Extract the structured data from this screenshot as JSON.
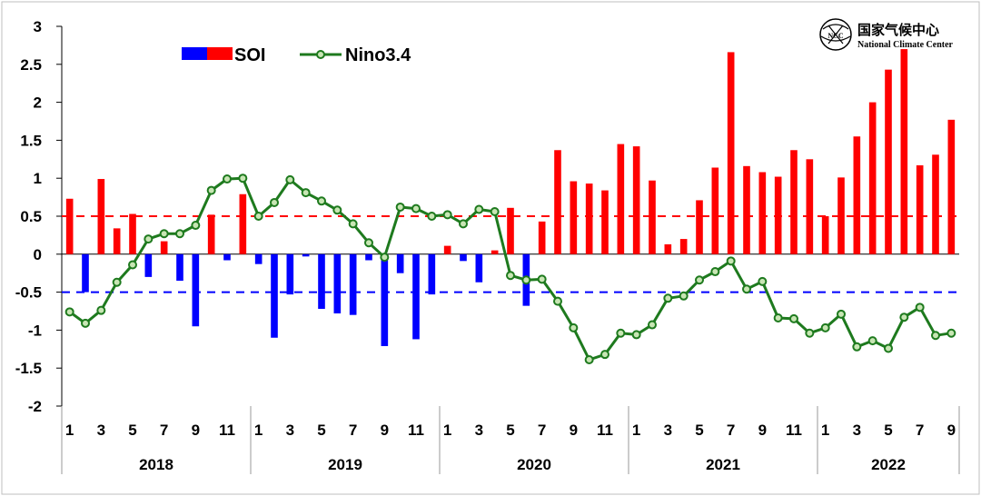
{
  "chart_data": {
    "type": "bar+line",
    "title": "",
    "xlabel": "",
    "ylabel": "",
    "ylim": [
      -2,
      3
    ],
    "yticks": [
      "3",
      "2.5",
      "2",
      "1.5",
      "1",
      "0.5",
      "0",
      "-0.5",
      "-1",
      "-1.5",
      "-2"
    ],
    "ytick_values": [
      3,
      2.5,
      2,
      1.5,
      1,
      0.5,
      0,
      -0.5,
      -1,
      -1.5,
      -2
    ],
    "month_labels": [
      "1",
      "3",
      "5",
      "7",
      "9",
      "11",
      "1",
      "3",
      "5",
      "7",
      "9",
      "11",
      "1",
      "3",
      "5",
      "7",
      "9",
      "11",
      "1",
      "3",
      "5",
      "7",
      "9",
      "11",
      "1",
      "3",
      "5",
      "7",
      "9"
    ],
    "month_label_index": [
      0,
      2,
      4,
      6,
      8,
      10,
      12,
      14,
      16,
      18,
      20,
      22,
      24,
      26,
      28,
      30,
      32,
      34,
      36,
      38,
      40,
      42,
      44,
      46,
      48,
      50,
      52,
      54,
      56
    ],
    "years": [
      {
        "label": "2018",
        "start": 0,
        "end": 12
      },
      {
        "label": "2019",
        "start": 12,
        "end": 24
      },
      {
        "label": "2020",
        "start": 24,
        "end": 36
      },
      {
        "label": "2021",
        "start": 36,
        "end": 48
      },
      {
        "label": "2022",
        "start": 48,
        "end": 57
      }
    ],
    "reference_lines": [
      {
        "value": 0.5,
        "color": "#ff0000",
        "style": "dashed"
      },
      {
        "value": -0.5,
        "color": "#0000ff",
        "style": "dashed"
      }
    ],
    "series": [
      {
        "name": "SOI",
        "kind": "bar",
        "positive_color": "#ff0000",
        "negative_color": "#0000ff",
        "values": [
          0.73,
          -0.5,
          0.99,
          0.34,
          0.53,
          -0.3,
          0.17,
          -0.35,
          -0.95,
          0.52,
          -0.08,
          0.79,
          -0.13,
          -1.1,
          -0.53,
          -0.03,
          -0.72,
          -0.78,
          -0.8,
          -0.08,
          -1.21,
          -0.25,
          -1.12,
          -0.53,
          0.11,
          -0.09,
          -0.37,
          0.05,
          0.61,
          -0.68,
          0.43,
          1.37,
          0.96,
          0.93,
          0.84,
          1.45,
          1.42,
          0.97,
          0.13,
          0.2,
          0.71,
          1.14,
          2.66,
          1.16,
          1.08,
          1.02,
          1.37,
          1.25,
          0.5,
          1.01,
          1.55,
          2.0,
          2.43,
          2.7,
          1.17,
          1.31,
          1.77
        ]
      },
      {
        "name": "Nino3.4",
        "kind": "line",
        "color": "#1e7a1e",
        "values": [
          -0.76,
          -0.91,
          -0.74,
          -0.37,
          -0.14,
          0.2,
          0.27,
          0.27,
          0.38,
          0.84,
          0.99,
          1.0,
          0.5,
          0.68,
          0.98,
          0.81,
          0.7,
          0.58,
          0.4,
          0.15,
          -0.04,
          0.62,
          0.6,
          0.5,
          0.52,
          0.4,
          0.59,
          0.56,
          -0.28,
          -0.34,
          -0.33,
          -0.62,
          -0.97,
          -1.39,
          -1.32,
          -1.04,
          -1.06,
          -0.93,
          -0.58,
          -0.55,
          -0.34,
          -0.23,
          -0.09,
          -0.46,
          -0.36,
          -0.84,
          -0.85,
          -1.04,
          -0.97,
          -0.79,
          -1.22,
          -1.14,
          -1.24,
          -0.83,
          -0.7,
          -1.07,
          -1.04
        ]
      }
    ],
    "legend": [
      {
        "label": "SOI",
        "type": "bar-pair",
        "colors": [
          "#0000ff",
          "#ff0000"
        ]
      },
      {
        "label": "Nino3.4",
        "type": "line-marker",
        "color": "#1e7a1e"
      }
    ],
    "legend_position": "top-left"
  },
  "logo": {
    "name_cn": "国家气候中心",
    "name_en": "National Climate Center",
    "emblem_text": "NCC"
  }
}
